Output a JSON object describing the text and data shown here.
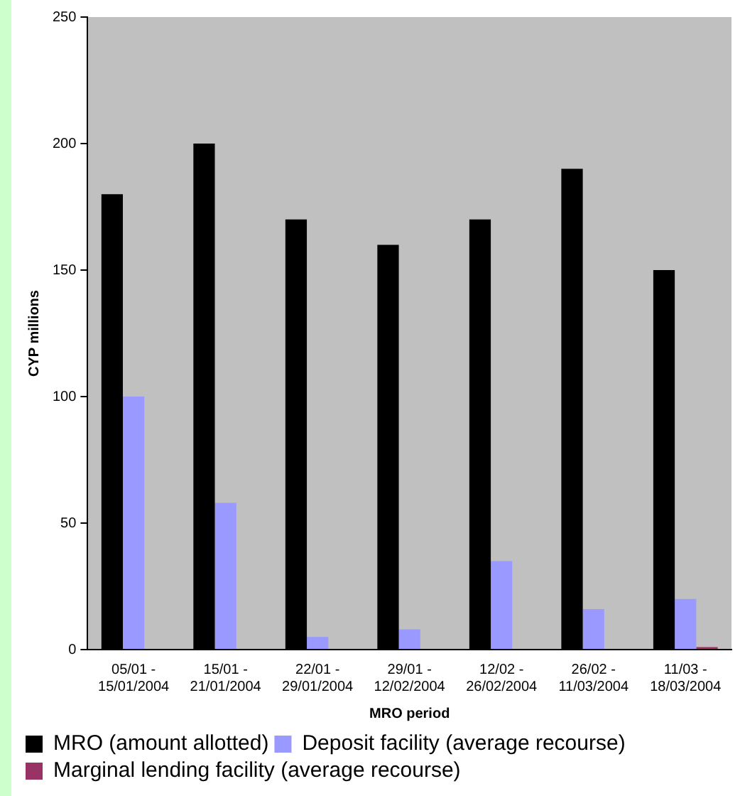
{
  "chart_data": {
    "type": "bar",
    "xlabel": "MRO period",
    "ylabel": "CYP millions",
    "categories": [
      "05/01 - 15/01/2004",
      "15/01 - 21/01/2004",
      "22/01 - 29/01/2004",
      "29/01 - 12/02/2004",
      "12/02 - 26/02/2004",
      "26/02 - 11/03/2004",
      "11/03 - 18/03/2004"
    ],
    "series": [
      {
        "name": "MRO (amount allotted)",
        "color": "#000000",
        "values": [
          180,
          200,
          170,
          160,
          170,
          190,
          150
        ]
      },
      {
        "name": "Deposit facility (average recourse)",
        "color": "#9999ff",
        "values": [
          100,
          58,
          5,
          8,
          35,
          16,
          20
        ]
      },
      {
        "name": "Marginal lending facility (average recourse)",
        "color": "#993366",
        "values": [
          0,
          0,
          0,
          0,
          0,
          0,
          1
        ]
      }
    ],
    "ylim": [
      0,
      250
    ],
    "yticks": [
      0,
      50,
      100,
      150,
      200,
      250
    ],
    "grid": false,
    "legend": "bottom"
  }
}
